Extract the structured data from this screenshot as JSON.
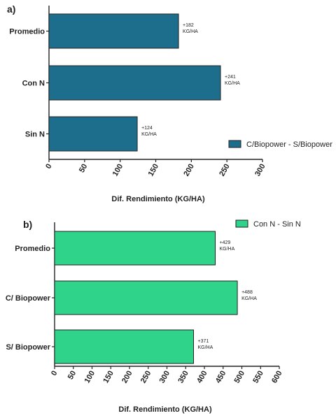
{
  "chart_data": [
    {
      "panel_label": "a)",
      "type": "bar",
      "orientation": "horizontal",
      "categories": [
        "Promedio",
        "Con N",
        "Sin N"
      ],
      "series": [
        {
          "name": "C/Biopower - S/Biopower",
          "values": [
            182,
            241,
            124
          ],
          "color": "#1d6e8c"
        }
      ],
      "data_labels": [
        {
          "value": "+182",
          "unit": "KG/HA"
        },
        {
          "value": "+241",
          "unit": "KG/HA"
        },
        {
          "value": "+124",
          "unit": "KG/HA"
        }
      ],
      "xlabel": "Dif. Rendimiento (KG/HA)",
      "xlim": [
        0,
        300
      ],
      "xticks": [
        0,
        50,
        100,
        150,
        200,
        250,
        300
      ],
      "grid": false,
      "legend": "bottom-right"
    },
    {
      "panel_label": "b)",
      "type": "bar",
      "orientation": "horizontal",
      "categories": [
        "Promedio",
        "C/ Biopower",
        "S/ Biopower"
      ],
      "series": [
        {
          "name": "Con N - Sin N",
          "values": [
            429,
            488,
            371
          ],
          "color": "#2fd38a"
        }
      ],
      "data_labels": [
        {
          "value": "+429",
          "unit": "KG/HA"
        },
        {
          "value": "+488",
          "unit": "KG/HA"
        },
        {
          "value": "+371",
          "unit": "KG/HA"
        }
      ],
      "xlabel": "Dif. Rendimiento (KG/HA)",
      "xlim": [
        0,
        600
      ],
      "xticks": [
        0,
        50,
        100,
        150,
        200,
        250,
        300,
        350,
        400,
        450,
        500,
        550,
        600
      ],
      "grid": false,
      "legend": "top-right"
    }
  ]
}
